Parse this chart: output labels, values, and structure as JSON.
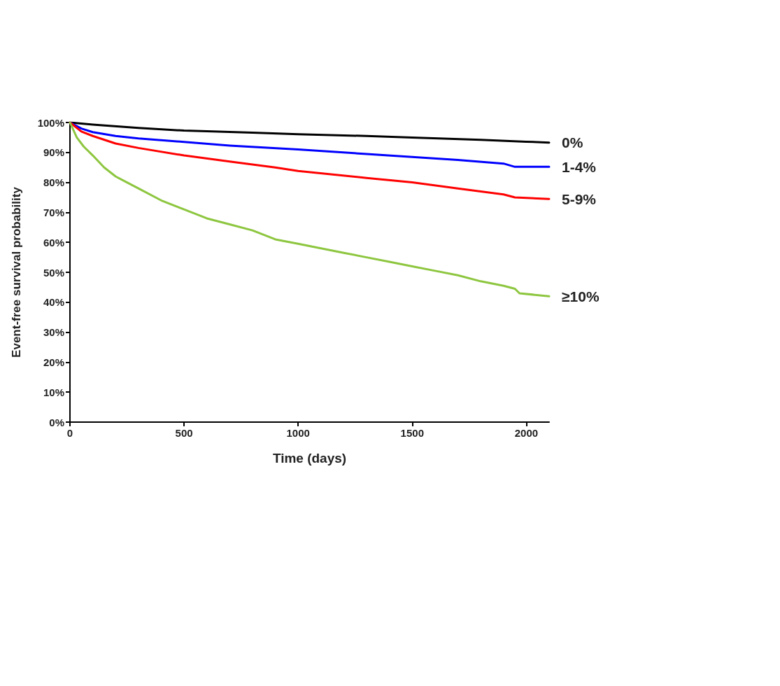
{
  "chart_data": {
    "type": "line",
    "xlabel": "Time (days)",
    "ylabel": "Event-free survival probability",
    "xlim": [
      0,
      2100
    ],
    "xticks": [
      0,
      500,
      1000,
      1500,
      2000
    ],
    "ylim": [
      0,
      100
    ],
    "yticks": [
      {
        "value": 0,
        "label": "0%"
      },
      {
        "value": 10,
        "label": "10%"
      },
      {
        "value": 20,
        "label": "20%"
      },
      {
        "value": 30,
        "label": "30%"
      },
      {
        "value": 40,
        "label": "40%"
      },
      {
        "value": 50,
        "label": "50%"
      },
      {
        "value": 60,
        "label": "60%"
      },
      {
        "value": 70,
        "label": "70%"
      },
      {
        "value": 80,
        "label": "80%"
      },
      {
        "value": 90,
        "label": "90%"
      },
      {
        "value": 100,
        "label": "100%"
      }
    ],
    "grid": false,
    "legend": false,
    "marker": "none",
    "line_style": "solid",
    "series": [
      {
        "name": "0%",
        "color": "#000000",
        "x": [
          0,
          100,
          300,
          500,
          800,
          1000,
          1300,
          1500,
          1800,
          2000,
          2100
        ],
        "values": [
          100,
          99.3,
          98.2,
          97.3,
          96.6,
          96.1,
          95.5,
          95,
          94.2,
          93.6,
          93.3
        ]
      },
      {
        "name": "1-4%",
        "color": "#0000ff",
        "x": [
          0,
          50,
          100,
          200,
          300,
          500,
          700,
          1000,
          1300,
          1500,
          1700,
          1900,
          1950,
          2100
        ],
        "values": [
          100,
          98,
          96.8,
          95.5,
          94.7,
          93.5,
          92.3,
          91,
          89.5,
          88.5,
          87.5,
          86.3,
          85.2,
          85.2
        ]
      },
      {
        "name": "5-9%",
        "color": "#ff0000",
        "x": [
          0,
          50,
          100,
          200,
          300,
          500,
          700,
          900,
          1000,
          1300,
          1500,
          1700,
          1900,
          1950,
          2100
        ],
        "values": [
          100,
          97,
          95.5,
          93,
          91.5,
          89,
          87,
          85,
          83.8,
          81.5,
          80,
          78,
          76,
          75,
          74.5
        ]
      },
      {
        "name": "≥10%",
        "color": "#8dc63f",
        "x": [
          0,
          30,
          60,
          100,
          150,
          200,
          250,
          300,
          400,
          500,
          600,
          700,
          800,
          900,
          1000,
          1100,
          1200,
          1300,
          1400,
          1500,
          1600,
          1700,
          1800,
          1900,
          1950,
          1970,
          2100
        ],
        "values": [
          100,
          95,
          92,
          89,
          85,
          82,
          80,
          78,
          74,
          71,
          68,
          66,
          64,
          61,
          59.5,
          58,
          56.5,
          55,
          53.5,
          52,
          50.5,
          49,
          47,
          45.5,
          44.5,
          43,
          42
        ]
      }
    ]
  }
}
